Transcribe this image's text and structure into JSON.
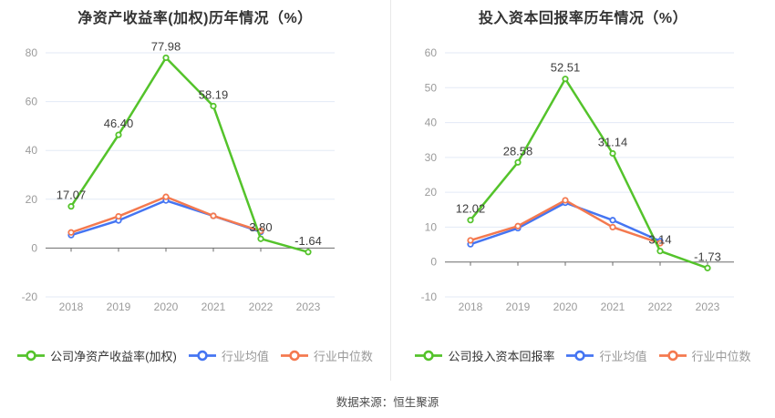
{
  "footer": {
    "source_text": "数据来源：恒生聚源"
  },
  "colors": {
    "company": "#54c32b",
    "industry_mean": "#4575f2",
    "industry_median": "#f4794f",
    "grid": "#e3eaf6",
    "axis": "#6b6b6b",
    "tick_text": "#9b9b9b",
    "data_label": "#3d3d3d",
    "title": "#333333",
    "legend_primary": "#333333",
    "legend_secondary": "#999999",
    "divider": "#e8e8e8"
  },
  "chart_data": [
    {
      "type": "line",
      "title": "净资产收益率(加权)历年情况（%）",
      "categories": [
        "2018",
        "2019",
        "2020",
        "2021",
        "2022",
        "2023"
      ],
      "ylim": [
        -20,
        80
      ],
      "yticks": [
        80,
        60,
        40,
        20,
        0,
        -20
      ],
      "grid": true,
      "legend_position": "bottom",
      "series": [
        {
          "name": "公司净资产收益率(加权)",
          "role": "company",
          "values": [
            17.07,
            46.4,
            77.98,
            58.19,
            3.8,
            -1.64
          ],
          "point_labels": [
            "17.07",
            "46.40",
            "77.98",
            "58.19",
            "3.80",
            "-1.64"
          ]
        },
        {
          "name": "行业均值",
          "role": "industry_mean",
          "values": [
            5.3,
            11.3,
            19.5,
            13.2,
            6.6,
            null
          ]
        },
        {
          "name": "行业中位数",
          "role": "industry_median",
          "values": [
            6.4,
            13.0,
            21.0,
            13.2,
            7.0,
            null
          ]
        }
      ]
    },
    {
      "type": "line",
      "title": "投入资本回报率历年情况（%）",
      "categories": [
        "2018",
        "2019",
        "2020",
        "2021",
        "2022",
        "2023"
      ],
      "ylim": [
        -10,
        60
      ],
      "yticks": [
        60,
        50,
        40,
        30,
        20,
        10,
        0,
        -10
      ],
      "grid": true,
      "legend_position": "bottom",
      "series": [
        {
          "name": "公司投入资本回报率",
          "role": "company",
          "values": [
            12.02,
            28.58,
            52.51,
            31.14,
            3.14,
            -1.73
          ],
          "point_labels": [
            "12.02",
            "28.58",
            "52.51",
            "31.14",
            "3.14",
            "-1.73"
          ]
        },
        {
          "name": "行业均值",
          "role": "industry_mean",
          "values": [
            5.1,
            9.7,
            17.0,
            12.0,
            6.0,
            null
          ]
        },
        {
          "name": "行业中位数",
          "role": "industry_median",
          "values": [
            6.2,
            10.3,
            17.7,
            10.0,
            5.4,
            null
          ]
        }
      ]
    }
  ]
}
